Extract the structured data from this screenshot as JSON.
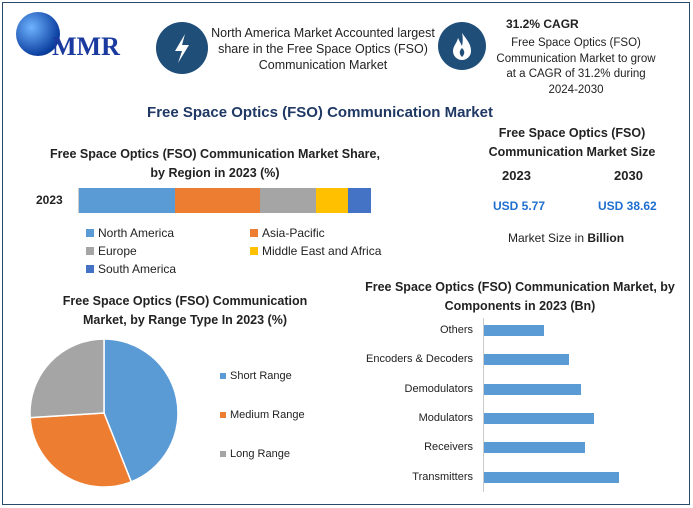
{
  "header": {
    "logo_text": "MMR",
    "fact1": "North America Market Accounted largest share in the Free Space Optics (FSO) Communication Market",
    "cagr_title": "31.2% CAGR",
    "cagr_text": "Free Space Optics (FSO) Communication Market to grow at a CAGR of 31.2% during 2024-2030"
  },
  "main_title": "Free Space Optics (FSO) Communication Market",
  "market_size": {
    "title": "Free Space Optics (FSO) Communication Market Size",
    "year1": "2023",
    "year2": "2030",
    "value1": "USD 5.77",
    "value2": "USD 38.62",
    "note_prefix": "Market Size in ",
    "note_bold": "Billion"
  },
  "colors": {
    "accent": "#1f4e79",
    "blue": "#5b9bd5",
    "orange": "#ed7d31",
    "gray": "#a5a5a5",
    "yellow": "#ffc000",
    "darkblue": "#4472c4"
  },
  "chart_data": [
    {
      "type": "bar",
      "stacked": true,
      "orientation": "horizontal",
      "title": "Free Space Optics (FSO) Communication Market Share, by Region in 2023 (%)",
      "categories": [
        "2023"
      ],
      "series": [
        {
          "name": "North America",
          "values": [
            33
          ],
          "color": "#5b9bd5"
        },
        {
          "name": "Asia-Pacific",
          "values": [
            29
          ],
          "color": "#ed7d31"
        },
        {
          "name": "Europe",
          "values": [
            19
          ],
          "color": "#a5a5a5"
        },
        {
          "name": "Middle East and Africa",
          "values": [
            11
          ],
          "color": "#ffc000"
        },
        {
          "name": "South America",
          "values": [
            8
          ],
          "color": "#4472c4"
        }
      ],
      "legend": "bottom"
    },
    {
      "type": "pie",
      "title": "Free Space Optics (FSO) Communication Market, by Range Type In 2023 (%)",
      "labels": [
        "Short Range",
        "Medium Range",
        "Long Range"
      ],
      "values": [
        44,
        30,
        26
      ],
      "colors": [
        "#5b9bd5",
        "#ed7d31",
        "#a5a5a5"
      ],
      "legend": "right"
    },
    {
      "type": "bar",
      "orientation": "horizontal",
      "title": "Free Space Optics (FSO) Communication Market, by Components in 2023 (Bn)",
      "categories": [
        "Others",
        "Encoders & Decoders",
        "Demodulators",
        "Modulators",
        "Receivers",
        "Transmitters"
      ],
      "values": [
        0.59,
        0.83,
        0.95,
        1.08,
        0.99,
        1.32
      ],
      "color": "#5b9bd5"
    }
  ]
}
